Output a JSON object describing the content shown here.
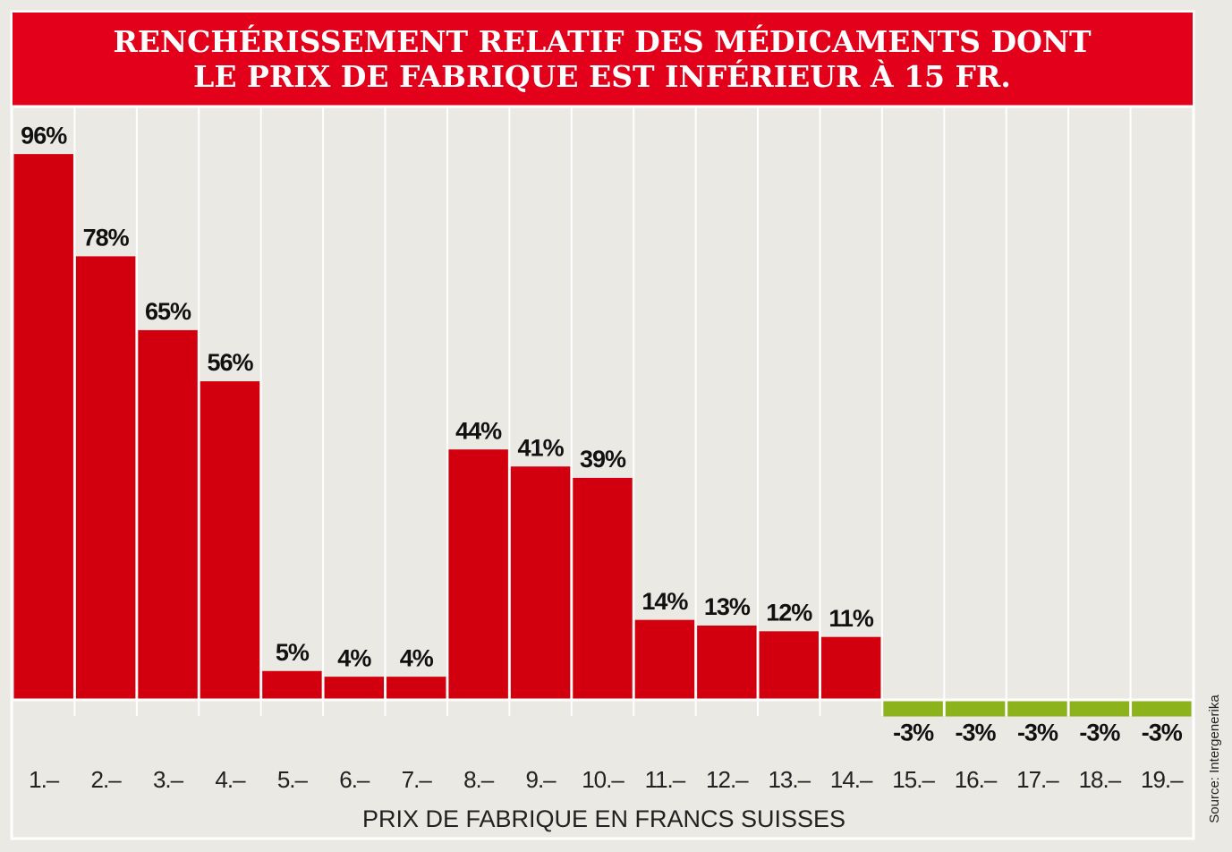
{
  "chart_data": {
    "type": "bar",
    "title": [
      "RENCHÉRISSEMENT RELATIF DES MÉDICAMENTS DONT",
      "LE PRIX DE FABRIQUE EST INFÉRIEUR À 15 FR."
    ],
    "categories": [
      "1.–",
      "2.–",
      "3.–",
      "4.–",
      "5.–",
      "6.–",
      "7.–",
      "8.–",
      "9.–",
      "10.–",
      "11.–",
      "12.–",
      "13.–",
      "14.–",
      "15.–",
      "16.–",
      "17.–",
      "18.–",
      "19.–"
    ],
    "values": [
      96,
      78,
      65,
      56,
      5,
      4,
      4,
      44,
      41,
      39,
      14,
      13,
      12,
      11,
      -3,
      -3,
      -3,
      -3,
      -3
    ],
    "value_labels": [
      "96%",
      "78%",
      "65%",
      "56%",
      "5%",
      "4%",
      "4%",
      "44%",
      "41%",
      "39%",
      "14%",
      "13%",
      "12%",
      "11%",
      "-3%",
      "-3%",
      "-3%",
      "-3%",
      "-3%"
    ],
    "color": "#d2000f",
    "negative_color": "#8db31c",
    "ylim": [
      -10,
      105
    ],
    "xlabel": "PRIX DE FABRIQUE EN FRANCS SUISSES",
    "source": "Source: Intergenerika"
  }
}
